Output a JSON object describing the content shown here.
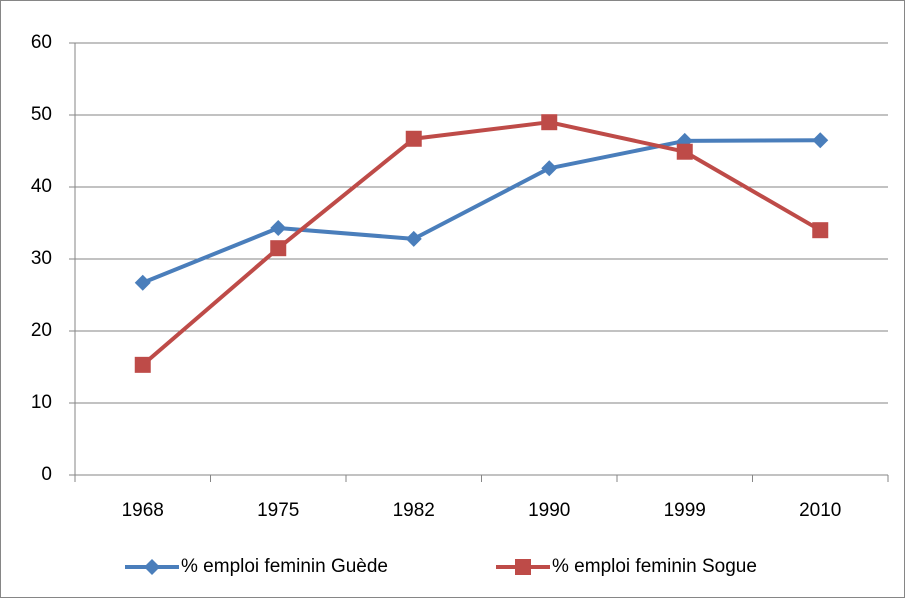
{
  "chart_data": {
    "type": "line",
    "categories": [
      "1968",
      "1975",
      "1982",
      "1990",
      "1999",
      "2010"
    ],
    "series": [
      {
        "name": "% emploi feminin Guède",
        "color": "#4a7ebb",
        "marker": "diamond",
        "values": [
          26.7,
          34.3,
          32.8,
          42.6,
          46.4,
          46.5
        ]
      },
      {
        "name": "% emploi feminin Sogue",
        "color": "#be4b48",
        "marker": "square",
        "values": [
          15.3,
          31.5,
          46.7,
          49.0,
          44.9,
          34.0
        ]
      }
    ],
    "ylim": [
      0,
      60
    ],
    "yticks": [
      0,
      10,
      20,
      30,
      40,
      50,
      60
    ],
    "grid": true,
    "legend": "bottom"
  }
}
